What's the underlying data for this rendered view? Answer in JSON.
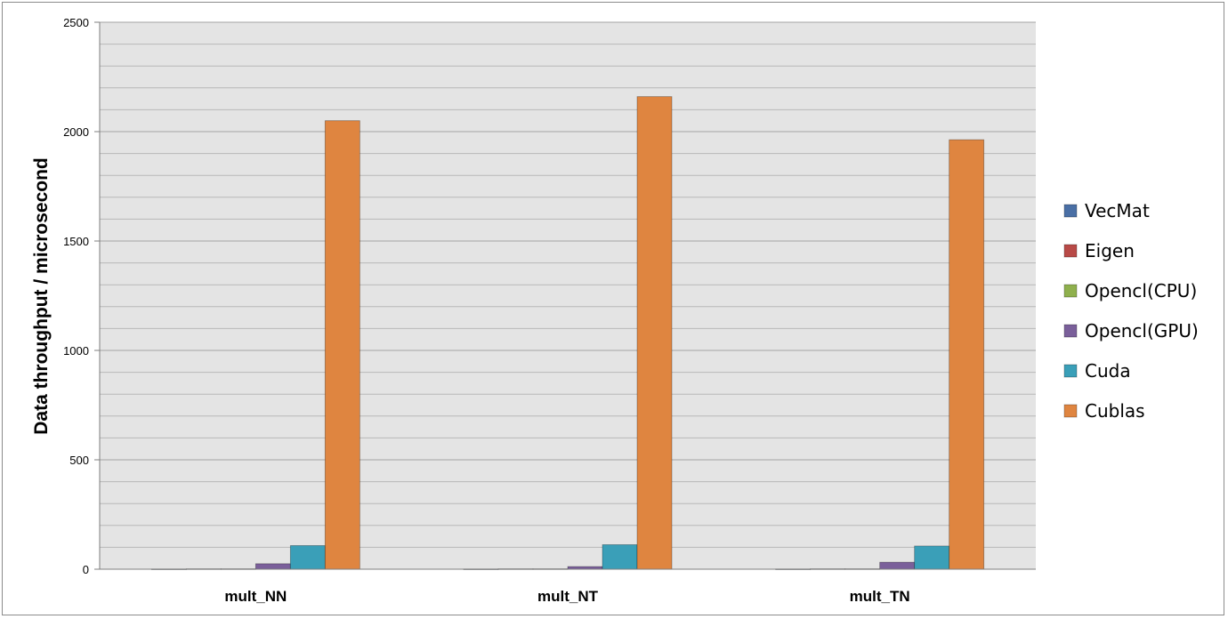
{
  "chart_data": {
    "type": "bar",
    "title": "",
    "xlabel": "",
    "ylabel": "Data throughput / microsecond",
    "ylim": [
      0,
      2500
    ],
    "ytick_step": 500,
    "minor_grid_step": 100,
    "yticks": [
      "0",
      "500",
      "1000",
      "1500",
      "2000",
      "2500"
    ],
    "grid": true,
    "legend_position": "right",
    "categories": [
      "mult_NN",
      "mult_NT",
      "mult_TN"
    ],
    "series": [
      {
        "name": "VecMat",
        "color": "#4a6fa5",
        "values": [
          1,
          1,
          1
        ]
      },
      {
        "name": "Eigen",
        "color": "#b84a47",
        "values": [
          2,
          2,
          2
        ]
      },
      {
        "name": "Opencl(CPU)",
        "color": "#8fb04d",
        "values": [
          2,
          2,
          2
        ]
      },
      {
        "name": "Opencl(GPU)",
        "color": "#7a5f9a",
        "values": [
          25,
          12,
          32
        ]
      },
      {
        "name": "Cuda",
        "color": "#3a9fb8",
        "values": [
          108,
          112,
          106
        ]
      },
      {
        "name": "Cublas",
        "color": "#df8540",
        "values": [
          2050,
          2160,
          1963
        ]
      }
    ]
  }
}
